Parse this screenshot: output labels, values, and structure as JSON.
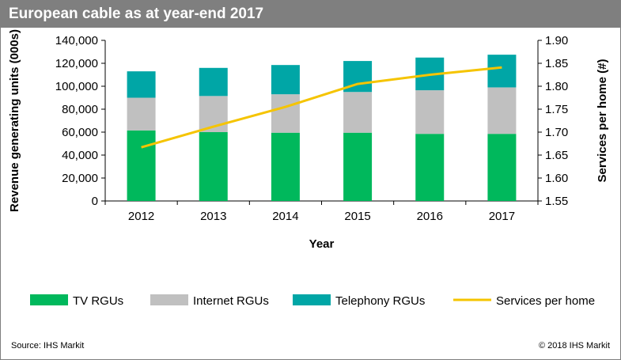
{
  "title": "European cable as at year-end 2017",
  "source": "Source: IHS Markit",
  "copyright": "© 2018 IHS Markit",
  "chart_data": {
    "type": "bar",
    "stacked": true,
    "categories": [
      "2012",
      "2013",
      "2014",
      "2015",
      "2016",
      "2017"
    ],
    "series": [
      {
        "name": "TV RGUs",
        "type": "bar",
        "color": "#00b85c",
        "values": [
          61500,
          60000,
          59500,
          59500,
          58500,
          58500
        ]
      },
      {
        "name": "Internet RGUs",
        "type": "bar",
        "color": "#c0c0c0",
        "values": [
          28500,
          31500,
          33500,
          35500,
          38000,
          40500
        ]
      },
      {
        "name": "Telephony RGUs",
        "type": "bar",
        "color": "#00a6a6",
        "values": [
          23000,
          24500,
          25500,
          27000,
          28500,
          28500
        ]
      },
      {
        "name": "Services per home",
        "type": "line",
        "axis": "right",
        "color": "#f5c400",
        "values": [
          1.667,
          1.712,
          1.755,
          1.805,
          1.825,
          1.841
        ]
      }
    ],
    "xlabel": "Year",
    "ylabel": "Revenue generating units (000s)",
    "y2label": "Services per home (#)",
    "ylim": [
      0,
      140000
    ],
    "yticks": [
      "0",
      "20,000",
      "40,000",
      "60,000",
      "80,000",
      "100,000",
      "120,000",
      "140,000"
    ],
    "y2lim": [
      1.55,
      1.9
    ],
    "y2ticks": [
      "1.55",
      "1.60",
      "1.65",
      "1.70",
      "1.75",
      "1.80",
      "1.85",
      "1.90"
    ],
    "legend_position": "bottom",
    "grid": false
  }
}
